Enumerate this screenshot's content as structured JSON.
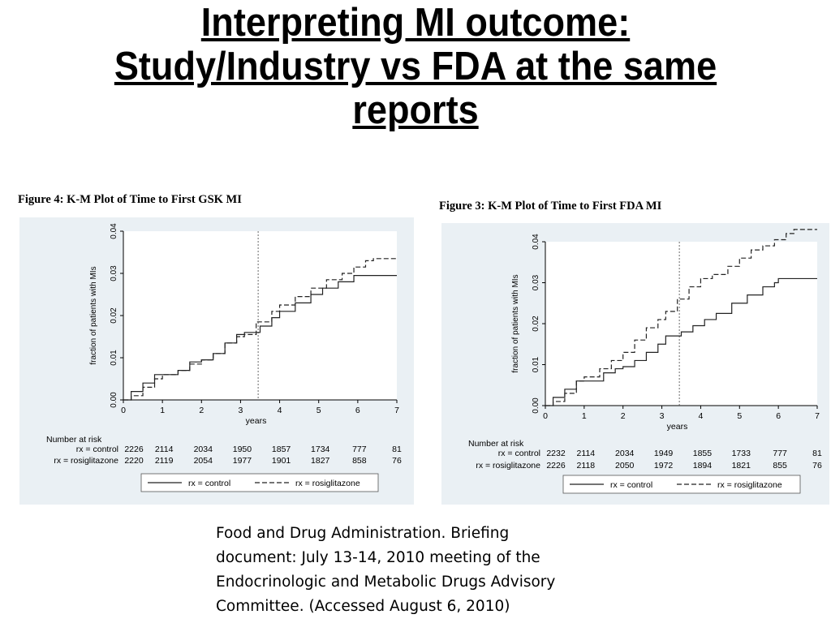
{
  "slide": {
    "title_lines": [
      "Interpreting MI outcome:",
      "Study/Industry vs FDA at the same",
      "reports"
    ],
    "citation_lines": [
      "Food and Drug Administration. Briefing",
      "document: July 13-14, 2010 meeting of the",
      "Endocrinologic and Metabolic Drugs Advisory",
      "Committee. (Accessed August 6, 2010)"
    ]
  },
  "chart_data": [
    {
      "type": "line",
      "title": "Figure 4: K-M Plot of Time to First GSK MI",
      "xlabel": "years",
      "ylabel": "fraction of patients with MIs",
      "xlim": [
        0,
        7
      ],
      "ylim": [
        0,
        0.04
      ],
      "x_ticks": [
        "0",
        "1",
        "2",
        "3",
        "4",
        "5",
        "6",
        "7"
      ],
      "y_ticks": [
        "0.00",
        "0.01",
        "0.02",
        "0.03",
        "0.04"
      ],
      "vline_x": 3.45,
      "grid": false,
      "legend_position": "bottom",
      "series": [
        {
          "name": "rx = control",
          "style": "solid",
          "x": [
            0,
            0.2,
            0.5,
            0.8,
            1.0,
            1.4,
            1.7,
            2.0,
            2.3,
            2.6,
            2.9,
            3.0,
            3.1,
            3.5,
            3.8,
            4.0,
            4.4,
            4.8,
            5.1,
            5.5,
            5.9,
            6.0,
            7.0
          ],
          "y": [
            0,
            0.002,
            0.004,
            0.006,
            0.006,
            0.007,
            0.009,
            0.0095,
            0.011,
            0.0135,
            0.0155,
            0.0155,
            0.016,
            0.0175,
            0.0195,
            0.021,
            0.023,
            0.025,
            0.0265,
            0.028,
            0.0295,
            0.0295,
            0.0295
          ]
        },
        {
          "name": "rx = rosiglitazone",
          "style": "dashed",
          "x": [
            0,
            0.2,
            0.5,
            0.8,
            1.0,
            1.4,
            1.7,
            2.0,
            2.3,
            2.6,
            2.9,
            3.1,
            3.4,
            3.8,
            4.0,
            4.4,
            4.8,
            5.2,
            5.6,
            5.9,
            6.2,
            6.4,
            7.0
          ],
          "y": [
            0,
            0.001,
            0.003,
            0.005,
            0.006,
            0.007,
            0.0085,
            0.0095,
            0.011,
            0.0135,
            0.015,
            0.0155,
            0.0185,
            0.021,
            0.0225,
            0.0245,
            0.0265,
            0.0285,
            0.03,
            0.0315,
            0.033,
            0.0335,
            0.0335
          ]
        }
      ],
      "risk_table": {
        "header": "Number at risk",
        "rows": [
          {
            "label": "rx = control",
            "values": [
              "2226",
              "2114",
              "2034",
              "1950",
              "1857",
              "1734",
              "777",
              "81"
            ]
          },
          {
            "label": "rx = rosiglitazone",
            "values": [
              "2220",
              "2119",
              "2054",
              "1977",
              "1901",
              "1827",
              "858",
              "76"
            ]
          }
        ]
      }
    },
    {
      "type": "line",
      "title": "Figure 3: K-M Plot of Time to First FDA MI",
      "xlabel": "years",
      "ylabel": "fraction of patients with MIs",
      "xlim": [
        0,
        7
      ],
      "ylim": [
        0,
        0.04
      ],
      "x_ticks": [
        "0",
        "1",
        "2",
        "3",
        "4",
        "5",
        "6",
        "7"
      ],
      "y_ticks": [
        "0.00",
        "0.01",
        "0.02",
        "0.03",
        "0.04"
      ],
      "vline_x": 3.45,
      "grid": false,
      "legend_position": "bottom",
      "series": [
        {
          "name": "rx = control",
          "style": "solid",
          "x": [
            0,
            0.2,
            0.5,
            0.8,
            1.0,
            1.5,
            1.8,
            2.0,
            2.3,
            2.6,
            2.9,
            3.1,
            3.5,
            3.8,
            4.1,
            4.4,
            4.8,
            5.2,
            5.6,
            5.9,
            6.0,
            7.0
          ],
          "y": [
            0,
            0.002,
            0.004,
            0.006,
            0.006,
            0.008,
            0.009,
            0.0095,
            0.011,
            0.013,
            0.015,
            0.017,
            0.018,
            0.0195,
            0.021,
            0.0225,
            0.025,
            0.027,
            0.029,
            0.03,
            0.031,
            0.031
          ]
        },
        {
          "name": "rx = rosiglitazone",
          "style": "dashed",
          "x": [
            0,
            0.2,
            0.5,
            0.8,
            1.0,
            1.4,
            1.7,
            2.0,
            2.3,
            2.6,
            2.9,
            3.1,
            3.4,
            3.7,
            4.0,
            4.3,
            4.7,
            5.0,
            5.3,
            5.6,
            5.9,
            6.2,
            6.4,
            7.0
          ],
          "y": [
            0,
            0.001,
            0.003,
            0.006,
            0.007,
            0.009,
            0.011,
            0.013,
            0.016,
            0.019,
            0.021,
            0.023,
            0.026,
            0.029,
            0.031,
            0.032,
            0.034,
            0.036,
            0.038,
            0.039,
            0.0405,
            0.042,
            0.043,
            0.043
          ]
        }
      ],
      "risk_table": {
        "header": "Number at risk",
        "rows": [
          {
            "label": "rx = control",
            "values": [
              "2232",
              "2114",
              "2034",
              "1949",
              "1855",
              "1733",
              "777",
              "81"
            ]
          },
          {
            "label": "rx = rosiglitazone",
            "values": [
              "2226",
              "2118",
              "2050",
              "1972",
              "1894",
              "1821",
              "855",
              "76"
            ]
          }
        ]
      }
    }
  ]
}
